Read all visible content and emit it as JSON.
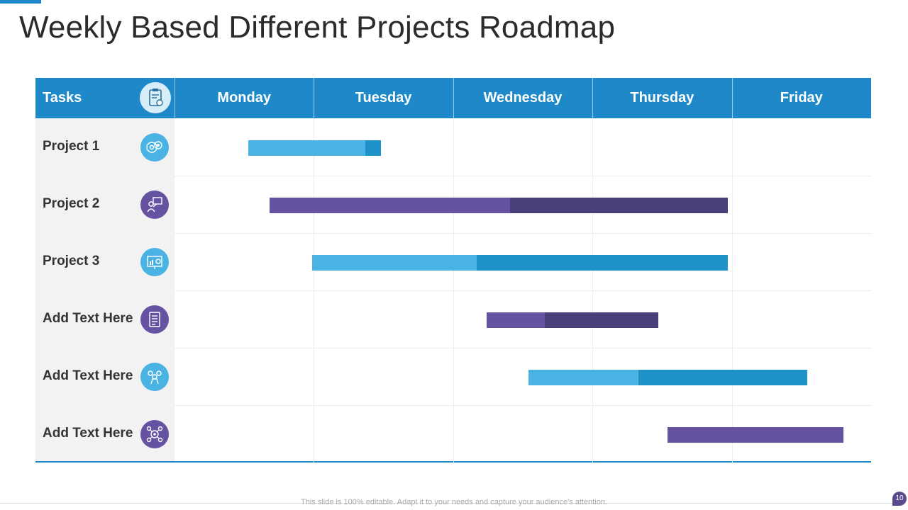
{
  "title": "Weekly Based Different Projects Roadmap",
  "footer": "This slide is 100% editable. Adapt it to your needs and capture your audience's attention.",
  "page_number": "10",
  "colors": {
    "header": "#1e88c8",
    "light_blue": "#4ab3e4",
    "dark_blue": "#1f93c9",
    "light_purple": "#6553a2",
    "dark_purple": "#4b3f79"
  },
  "chart_data": {
    "type": "gantt",
    "header_label": "Tasks",
    "header_icon": "clipboard-checklist-icon",
    "days": [
      "Monday",
      "Tuesday",
      "Wednesday",
      "Thursday",
      "Friday"
    ],
    "x_unit": "days from start of Monday",
    "xlim": [
      0,
      5
    ],
    "tasks": [
      {
        "name": "Project 1",
        "icon": "brain-gears-icon",
        "icon_color": "#4ab3e4",
        "segments": [
          {
            "start": 0.53,
            "end": 1.37,
            "color": "#4ab3e4"
          },
          {
            "start": 1.37,
            "end": 1.48,
            "color": "#1f93c9"
          }
        ]
      },
      {
        "name": "Project 2",
        "icon": "presenter-board-icon",
        "icon_color": "#6553a2",
        "segments": [
          {
            "start": 0.68,
            "end": 2.41,
            "color": "#6553a2"
          },
          {
            "start": 2.41,
            "end": 3.97,
            "color": "#4b3f79"
          }
        ]
      },
      {
        "name": "Project 3",
        "icon": "presentation-chart-icon",
        "icon_color": "#4ab3e4",
        "segments": [
          {
            "start": 0.99,
            "end": 2.17,
            "color": "#4ab3e4"
          },
          {
            "start": 2.17,
            "end": 3.97,
            "color": "#1f93c9"
          }
        ]
      },
      {
        "name": "Add Text Here",
        "icon": "document-list-icon",
        "icon_color": "#6553a2",
        "segments": [
          {
            "start": 2.24,
            "end": 2.66,
            "color": "#6553a2"
          },
          {
            "start": 2.66,
            "end": 3.47,
            "color": "#4b3f79"
          }
        ]
      },
      {
        "name": "Add Text Here",
        "icon": "team-ideas-icon",
        "icon_color": "#4ab3e4",
        "segments": [
          {
            "start": 2.54,
            "end": 3.33,
            "color": "#4ab3e4"
          },
          {
            "start": 3.33,
            "end": 4.54,
            "color": "#1f93c9"
          }
        ]
      },
      {
        "name": "Add Text Here",
        "icon": "network-gear-icon",
        "icon_color": "#6553a2",
        "segments": [
          {
            "start": 3.54,
            "end": 4.8,
            "color": "#6553a2"
          }
        ]
      }
    ]
  }
}
